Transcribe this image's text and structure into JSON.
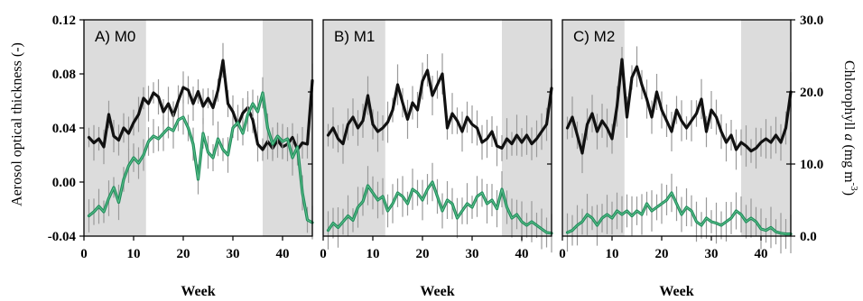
{
  "colors": {
    "shade": "#dcdcdc",
    "aot_line": "#111111",
    "chl_line": "#1f8a5a",
    "error_bar": "#9a9a9a",
    "frame": "#000000"
  },
  "figure": {
    "left_ylabel": "Aerosol optical thickness (-)",
    "right_ylabel": "Chlorophyll a (mg m-3)",
    "right_ylabel_parts": {
      "prefix": "Chlorophyll ",
      "italic": "a",
      "middle": " (mg m",
      "sup": "-3",
      "suffix": ")"
    }
  },
  "chart_data": [
    {
      "type": "line",
      "panel_label": "A) M0",
      "xlabel": "Week",
      "xticks": [
        "0",
        "10",
        "20",
        "30",
        "40"
      ],
      "xlim": [
        0,
        46
      ],
      "shaded_weeks": [
        [
          0,
          12.5
        ],
        [
          36,
          46
        ]
      ],
      "left_yticks": [
        "0.12",
        "0.08",
        "0.04",
        "0.00",
        "-0.04"
      ],
      "ylim_left": [
        -0.04,
        0.12
      ],
      "ylim_right": [
        0,
        30
      ],
      "series": [
        {
          "axis": "left",
          "x": [
            1,
            2,
            3,
            4,
            5,
            6,
            7,
            8,
            9,
            10,
            11,
            12,
            13,
            14,
            15,
            16,
            17,
            18,
            19,
            20,
            21,
            22,
            23,
            24,
            25,
            26,
            27,
            28,
            29,
            30,
            31,
            32,
            33,
            34,
            35,
            36,
            37,
            38,
            39,
            40,
            41,
            42,
            43,
            44,
            45,
            46
          ],
          "values": [
            0.033,
            0.029,
            0.032,
            0.026,
            0.05,
            0.034,
            0.031,
            0.04,
            0.036,
            0.044,
            0.05,
            0.062,
            0.058,
            0.066,
            0.063,
            0.052,
            0.058,
            0.049,
            0.06,
            0.07,
            0.068,
            0.058,
            0.067,
            0.056,
            0.062,
            0.055,
            0.068,
            0.09,
            0.058,
            0.052,
            0.042,
            0.051,
            0.055,
            0.046,
            0.028,
            0.024,
            0.03,
            0.025,
            0.031,
            0.026,
            0.028,
            0.033,
            0.024,
            0.029,
            0.028,
            0.075
          ]
        },
        {
          "axis": "left",
          "x": [
            1,
            2,
            3,
            4,
            5,
            6,
            7,
            8,
            9,
            10,
            11,
            12,
            13,
            14,
            15,
            16,
            17,
            18,
            19,
            20,
            21,
            22,
            23,
            24,
            25,
            26,
            27,
            28,
            29,
            30,
            31,
            32,
            33,
            34,
            35,
            36,
            37,
            38,
            39,
            40,
            41,
            42,
            43,
            44,
            45,
            46
          ],
          "values": [
            -0.025,
            -0.022,
            -0.018,
            -0.022,
            -0.012,
            -0.004,
            -0.015,
            0.002,
            0.012,
            0.018,
            0.014,
            0.02,
            0.03,
            0.034,
            0.032,
            0.036,
            0.04,
            0.038,
            0.046,
            0.048,
            0.04,
            0.028,
            0.002,
            0.036,
            0.022,
            0.018,
            0.032,
            0.024,
            0.02,
            0.04,
            0.044,
            0.036,
            0.05,
            0.058,
            0.052,
            0.066,
            0.04,
            0.028,
            0.034,
            0.03,
            0.032,
            0.018,
            0.026,
            -0.008,
            -0.028,
            -0.03
          ]
        }
      ]
    },
    {
      "type": "line",
      "panel_label": "B) M1",
      "xlabel": "Week",
      "xticks": [
        "0",
        "10",
        "20",
        "30",
        "40"
      ],
      "xlim": [
        0,
        46
      ],
      "shaded_weeks": [
        [
          0,
          12.5
        ],
        [
          36,
          46
        ]
      ],
      "ylim_right": [
        0,
        30
      ],
      "series": [
        {
          "axis": "right",
          "x": [
            1,
            2,
            3,
            4,
            5,
            6,
            7,
            8,
            9,
            10,
            11,
            12,
            13,
            14,
            15,
            16,
            17,
            18,
            19,
            20,
            21,
            22,
            23,
            24,
            25,
            26,
            27,
            28,
            29,
            30,
            31,
            32,
            33,
            34,
            35,
            36,
            37,
            38,
            39,
            40,
            41,
            42,
            43,
            44,
            45,
            46
          ],
          "values": [
            14.0,
            15.0,
            13.5,
            12.8,
            15.5,
            16.5,
            15.0,
            16.0,
            19.5,
            15.5,
            14.5,
            15.0,
            15.8,
            17.5,
            21.0,
            18.5,
            16.2,
            18.5,
            17.5,
            21.5,
            23.0,
            19.5,
            21.0,
            22.5,
            15.0,
            17.0,
            16.0,
            14.5,
            16.5,
            15.5,
            15.0,
            13.0,
            13.5,
            14.5,
            12.5,
            12.2,
            13.5,
            12.8,
            14.0,
            13.0,
            14.0,
            12.8,
            13.5,
            14.5,
            15.5,
            20.5
          ]
        },
        {
          "axis": "right",
          "x": [
            1,
            2,
            3,
            4,
            5,
            6,
            7,
            8,
            9,
            10,
            11,
            12,
            13,
            14,
            15,
            16,
            17,
            18,
            19,
            20,
            21,
            22,
            23,
            24,
            25,
            26,
            27,
            28,
            29,
            30,
            31,
            32,
            33,
            34,
            35,
            36,
            37,
            38,
            39,
            40,
            41,
            42,
            43,
            44,
            45,
            46
          ],
          "values": [
            0.8,
            1.8,
            1.2,
            2.0,
            2.8,
            2.2,
            4.0,
            4.8,
            7.0,
            6.0,
            5.0,
            5.5,
            3.5,
            4.5,
            6.0,
            5.5,
            4.5,
            6.5,
            6.0,
            5.0,
            6.5,
            7.5,
            5.5,
            3.5,
            5.0,
            4.5,
            2.5,
            3.5,
            4.5,
            4.0,
            5.5,
            6.0,
            4.5,
            5.0,
            3.8,
            6.5,
            4.0,
            2.5,
            3.0,
            2.0,
            1.5,
            2.0,
            1.5,
            1.0,
            0.5,
            0.4
          ]
        }
      ]
    },
    {
      "type": "line",
      "panel_label": "C) M2",
      "xlabel": "Week",
      "xticks": [
        "0",
        "10",
        "20",
        "30",
        "40"
      ],
      "xlim": [
        0,
        46
      ],
      "shaded_weeks": [
        [
          0,
          12.5
        ],
        [
          36,
          46
        ]
      ],
      "right_yticks": [
        "30.0",
        "20.0",
        "10.0",
        "0.0"
      ],
      "ylim_right": [
        0,
        30
      ],
      "series": [
        {
          "axis": "right",
          "x": [
            1,
            2,
            3,
            4,
            5,
            6,
            7,
            8,
            9,
            10,
            11,
            12,
            13,
            14,
            15,
            16,
            17,
            18,
            19,
            20,
            21,
            22,
            23,
            24,
            25,
            26,
            27,
            28,
            29,
            30,
            31,
            32,
            33,
            34,
            35,
            36,
            37,
            38,
            39,
            40,
            41,
            42,
            43,
            44,
            45,
            46
          ],
          "values": [
            15.0,
            16.5,
            14.0,
            11.5,
            15.5,
            17.0,
            14.5,
            16.0,
            15.0,
            13.5,
            18.0,
            24.5,
            16.5,
            22.0,
            23.5,
            21.0,
            19.0,
            16.5,
            20.0,
            17.5,
            16.0,
            14.5,
            17.5,
            16.0,
            15.0,
            16.0,
            17.0,
            19.0,
            14.5,
            17.5,
            16.5,
            14.5,
            13.0,
            14.0,
            12.0,
            13.0,
            12.5,
            11.8,
            12.2,
            13.0,
            13.5,
            13.0,
            14.0,
            13.0,
            15.0,
            20.0
          ]
        },
        {
          "axis": "right",
          "x": [
            1,
            2,
            3,
            4,
            5,
            6,
            7,
            8,
            9,
            10,
            11,
            12,
            13,
            14,
            15,
            16,
            17,
            18,
            19,
            20,
            21,
            22,
            23,
            24,
            25,
            26,
            27,
            28,
            29,
            30,
            31,
            32,
            33,
            34,
            35,
            36,
            37,
            38,
            39,
            40,
            41,
            42,
            43,
            44,
            45,
            46
          ],
          "values": [
            0.5,
            0.8,
            1.5,
            2.0,
            3.0,
            2.5,
            1.5,
            2.5,
            3.0,
            2.5,
            3.5,
            3.0,
            3.5,
            2.8,
            3.5,
            3.0,
            4.5,
            3.5,
            4.0,
            4.5,
            5.0,
            6.0,
            4.5,
            3.0,
            4.0,
            3.5,
            2.0,
            1.5,
            2.5,
            2.0,
            1.8,
            1.5,
            2.0,
            2.5,
            3.5,
            3.0,
            2.0,
            2.5,
            2.0,
            1.0,
            0.8,
            1.2,
            0.6,
            0.4,
            0.3,
            0.3
          ]
        }
      ]
    }
  ]
}
